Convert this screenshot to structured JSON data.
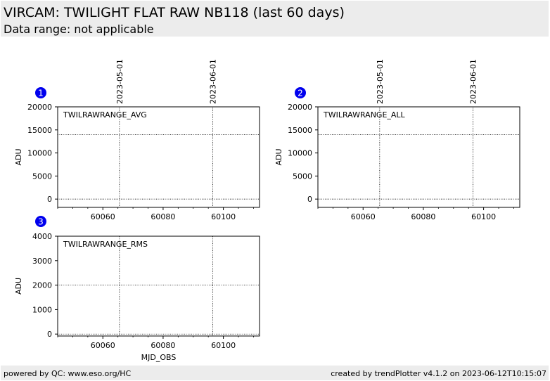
{
  "header": {
    "title": "VIRCAM: TWILIGHT FLAT RAW NB118 (last 60 days)",
    "subtitle": "Data range: not applicable"
  },
  "footer": {
    "left": "powered by QC: www.eso.org/HC",
    "right": "created by trendPlotter v4.1.2 on 2023-06-12T10:15:07"
  },
  "colors": {
    "badge": "#0000ee",
    "header_bg": "#ececec"
  },
  "chart_data": [
    {
      "type": "scatter",
      "badge": "1",
      "label": "TWILRAWRANGE_AVG",
      "ylabel": "ADU",
      "xlabel": "",
      "xlim": [
        60045,
        60112
      ],
      "ylim": [
        -1800,
        20000
      ],
      "xticks": [
        60060,
        60080,
        60100
      ],
      "yticks": [
        0,
        5000,
        10000,
        15000,
        20000
      ],
      "hlines": [
        0,
        14000
      ],
      "date_lines": [
        {
          "x": 60065.5,
          "label": "2023-05-01"
        },
        {
          "x": 60096.5,
          "label": "2023-06-01"
        }
      ],
      "series": []
    },
    {
      "type": "scatter",
      "badge": "2",
      "label": "TWILRAWRANGE_ALL",
      "ylabel": "ADU",
      "xlabel": "",
      "xlim": [
        60045,
        60112
      ],
      "ylim": [
        -1800,
        20000
      ],
      "xticks": [
        60060,
        60080,
        60100
      ],
      "yticks": [
        0,
        5000,
        10000,
        15000,
        20000
      ],
      "hlines": [
        0,
        14000
      ],
      "date_lines": [
        {
          "x": 60065.5,
          "label": "2023-05-01"
        },
        {
          "x": 60096.5,
          "label": "2023-06-01"
        }
      ],
      "series": []
    },
    {
      "type": "scatter",
      "badge": "3",
      "label": "TWILRAWRANGE_RMS",
      "ylabel": "ADU",
      "xlabel": "MJD_OBS",
      "xlim": [
        60045,
        60112
      ],
      "ylim": [
        -80,
        4000
      ],
      "xticks": [
        60060,
        60080,
        60100
      ],
      "yticks": [
        0,
        1000,
        2000,
        3000,
        4000
      ],
      "hlines": [
        0,
        2000
      ],
      "date_lines": [
        {
          "x": 60065.5,
          "label": ""
        },
        {
          "x": 60096.5,
          "label": ""
        }
      ],
      "series": []
    }
  ]
}
